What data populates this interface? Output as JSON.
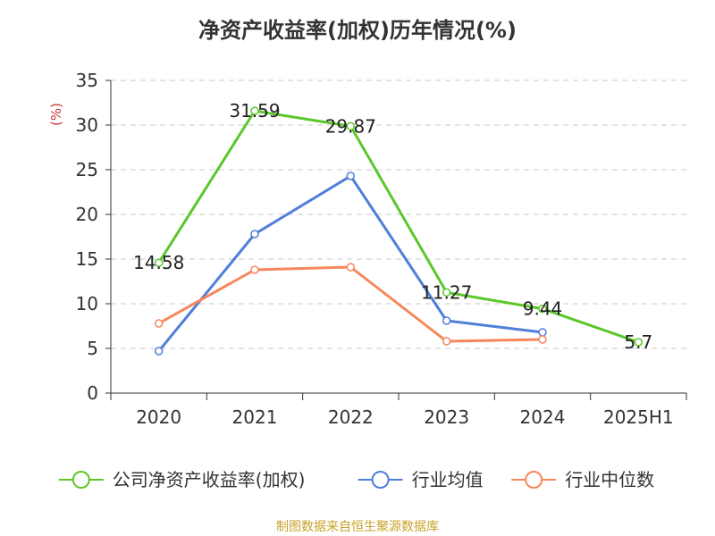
{
  "chart_data": {
    "type": "line",
    "title": "净资产收益率(加权)历年情况(%)",
    "ylabel": "(%)",
    "xlabel": "",
    "categories": [
      "2020",
      "2021",
      "2022",
      "2023",
      "2024",
      "2025H1"
    ],
    "ylim": [
      0,
      35
    ],
    "yticks": [
      0,
      5,
      10,
      15,
      20,
      25,
      30,
      35
    ],
    "grid": "horizontal dashed",
    "legend_position": "bottom",
    "series": [
      {
        "name": "公司净资产收益率(加权)",
        "color": "#5cc72a",
        "values": [
          14.58,
          31.59,
          29.87,
          11.27,
          9.44,
          5.7
        ],
        "labels": [
          "14.58",
          "31.59",
          "29.87",
          "11.27",
          "9.44",
          "5.7"
        ]
      },
      {
        "name": "行业均值",
        "color": "#4f7fd9",
        "values": [
          4.7,
          17.8,
          24.3,
          8.1,
          6.8,
          null
        ]
      },
      {
        "name": "行业中位数",
        "color": "#f7875a",
        "values": [
          7.8,
          13.8,
          14.1,
          5.8,
          6.0,
          null
        ]
      }
    ]
  },
  "source": "制图数据来自恒生聚源数据库"
}
